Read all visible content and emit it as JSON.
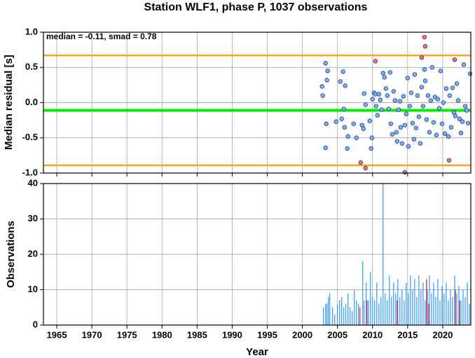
{
  "chart_data": [
    {
      "type": "scatter",
      "title": "Station WLF1, phase P, 1037 observations",
      "annotation": "median = -0.11, smad = 0.78",
      "ylabel": "Median residual [s]",
      "ylim": [
        -1,
        1
      ],
      "yticks": [
        {
          "value": 1,
          "label": "1.0"
        },
        0.5,
        {
          "value": 0,
          "label": "0.0"
        },
        -0.5,
        {
          "value": -1,
          "label": "-1.0"
        }
      ],
      "grid": true,
      "reference_lines": [
        {
          "value": -0.11,
          "color": "#00ee00"
        },
        {
          "value": 0.67,
          "color": "#f5a623"
        },
        {
          "value": -0.89,
          "color": "#f5a623"
        }
      ],
      "series": [
        {
          "color": "#7fb0ff",
          "x": [
            2002.8,
            2002.9,
            2003.3,
            2003.6,
            2003.5,
            2003.4,
            2003.3,
            2004.8,
            2005.4,
            2005.6,
            2005.8,
            2005.9,
            2006.1,
            2006.4,
            2006.5,
            2006.0,
            2007.7,
            2007.3,
            2008.5,
            2008.8,
            2008.7,
            2009.0,
            2009.6,
            2009.8,
            2009.9,
            2010.0,
            2010.2,
            2010.4,
            2010.5,
            2010.7,
            2010.9,
            2011.1,
            2011.3,
            2011.5,
            2011.7,
            2011.9,
            2012.1,
            2012.3,
            2012.5,
            2012.6,
            2012.8,
            2013.0,
            2013.2,
            2013.4,
            2013.5,
            2013.7,
            2013.9,
            2014.0,
            2014.2,
            2014.4,
            2014.6,
            2014.8,
            2015.0,
            2015.1,
            2015.3,
            2015.5,
            2015.7,
            2015.9,
            2016.0,
            2016.2,
            2016.4,
            2016.6,
            2016.8,
            2017.0,
            2017.2,
            2017.4,
            2017.5,
            2017.7,
            2017.9,
            2018.1,
            2018.3,
            2018.5,
            2018.7,
            2018.9,
            2019.1,
            2019.3,
            2019.5,
            2019.7,
            2019.9,
            2020.1,
            2020.3,
            2020.5,
            2020.8,
            2021.0,
            2021.2,
            2021.4,
            2021.6,
            2021.8,
            2022.0,
            2022.2,
            2022.4,
            2022.6,
            2022.8,
            2023.0,
            2023.2,
            2023.4,
            2023.6,
            2023.9
          ],
          "values": [
            0.23,
            0.1,
            0.56,
            0.45,
            0.32,
            -0.3,
            -0.64,
            -0.27,
            0.3,
            -0.23,
            0.44,
            -0.09,
            0.24,
            -0.65,
            -0.48,
            -0.35,
            -0.5,
            -0.3,
            -0.32,
            0.13,
            -0.37,
            -0.03,
            -0.26,
            -0.65,
            -0.5,
            0.05,
            0.14,
            0.12,
            -0.05,
            -0.18,
            0.12,
            0.04,
            -0.1,
            0.42,
            0.36,
            0.2,
            0.1,
            -0.09,
            0.43,
            -0.3,
            -0.45,
            0.16,
            0.03,
            -0.42,
            -0.55,
            -0.1,
            0.02,
            -0.35,
            -0.58,
            0.09,
            -0.32,
            -0.16,
            0.35,
            -0.62,
            -0.05,
            0.14,
            -0.29,
            -0.52,
            0.4,
            -0.36,
            0.1,
            -0.2,
            -0.58,
            0.22,
            -0.05,
            0.47,
            0.31,
            -0.24,
            0.1,
            -0.42,
            0.03,
            0.5,
            -0.28,
            0.08,
            -0.46,
            0.05,
            -0.08,
            0.45,
            -0.3,
            0.0,
            -0.44,
            0.2,
            -0.48,
            0.1,
            -0.35,
            0.21,
            -0.14,
            -0.19,
            0.27,
            0.03,
            -0.23,
            -0.43,
            -0.27,
            0.54,
            -0.05,
            -0.11,
            -0.29,
            0.41
          ]
        },
        {
          "color": "#ff7058",
          "x": [
            2008.3,
            2009.0,
            2010.4,
            2014.6,
            2017.0,
            2017.4,
            2017.5,
            2020.9,
            2021.7
          ],
          "values": [
            -0.85,
            -0.93,
            0.59,
            -0.99,
            0.64,
            0.93,
            0.8,
            -0.82,
            0.61
          ]
        }
      ]
    },
    {
      "type": "bar",
      "ylabel": "Observations",
      "xlabel": "Year",
      "xlim": [
        1963.1,
        2024
      ],
      "xticks": [
        1965,
        1970,
        1975,
        1980,
        1985,
        1990,
        1995,
        2000,
        2005,
        2010,
        2015,
        2020
      ],
      "ylim": [
        0,
        40
      ],
      "yticks": [
        0,
        10,
        20,
        30,
        40
      ],
      "grid": true,
      "series": [
        {
          "color": "#3399ff",
          "x": [
            2003.0,
            2003.3,
            2003.5,
            2003.7,
            2003.9,
            2004.3,
            2004.6,
            2005.0,
            2005.3,
            2005.6,
            2005.9,
            2006.2,
            2006.5,
            2006.8,
            2007.1,
            2007.4,
            2007.7,
            2008.0,
            2008.6,
            2008.8,
            2009.1,
            2009.4,
            2009.7,
            2010.0,
            2010.3,
            2010.6,
            2010.9,
            2011.2,
            2011.5,
            2011.8,
            2012.1,
            2012.4,
            2012.7,
            2013.0,
            2013.3,
            2013.6,
            2013.9,
            2014.2,
            2014.5,
            2014.8,
            2015.1,
            2015.4,
            2015.7,
            2016.0,
            2016.3,
            2016.6,
            2016.9,
            2017.2,
            2017.5,
            2017.8,
            2018.1,
            2018.4,
            2018.7,
            2019.0,
            2019.3,
            2019.6,
            2019.9,
            2020.2,
            2020.5,
            2020.8,
            2021.1,
            2021.4,
            2021.7,
            2022.0,
            2022.3,
            2022.6,
            2022.9,
            2023.2,
            2023.5,
            2023.8
          ],
          "values": [
            5,
            6,
            6,
            8,
            9,
            5,
            3,
            6,
            7,
            8,
            5,
            6,
            9,
            5,
            4,
            10,
            7,
            6,
            18,
            7,
            12,
            7,
            15,
            8,
            7,
            12,
            6,
            8,
            40,
            9,
            7,
            14,
            8,
            12,
            9,
            13,
            8,
            10,
            7,
            12,
            9,
            14,
            10,
            13,
            8,
            14,
            10,
            12,
            7,
            10,
            14,
            9,
            12,
            8,
            13,
            7,
            11,
            9,
            12,
            7,
            10,
            8,
            14,
            9,
            11,
            7,
            10,
            8,
            12,
            6
          ]
        },
        {
          "color": "#cc2222",
          "x": [
            2008.2,
            2009.2,
            2013.5,
            2017.7,
            2018.0,
            2021.8,
            2022.4
          ],
          "values": [
            5,
            7,
            7,
            13,
            6,
            10,
            7
          ]
        }
      ]
    }
  ]
}
